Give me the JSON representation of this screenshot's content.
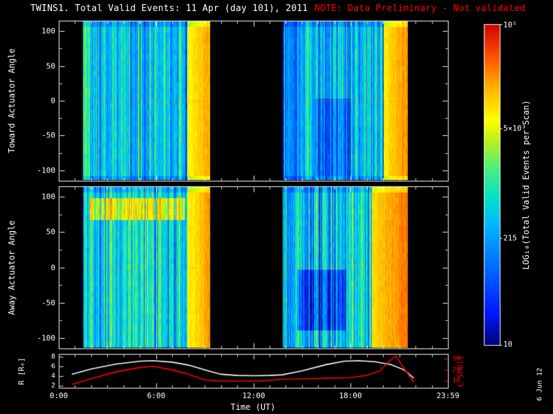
{
  "title": {
    "main": "TWINS1. Total Valid Events: 11 Apr (day 101), 2011",
    "note": "NOTE: Data Preliminary - Not validated"
  },
  "datestamp": "6 Jun 12",
  "colors": {
    "background": "#000000",
    "foreground": "#ffffff",
    "note": "#ff0000",
    "r_curve": "#ffffff",
    "l_shell": "#ff0000"
  },
  "chart_data": [
    {
      "type": "heatmap",
      "title": "TWINS1. Total Valid Events: 11 Apr (day 101), 2011",
      "note": "NOTE: Data Preliminary - Not validated",
      "xlabel": "Time (UT)",
      "xlim_hours": [
        0,
        24
      ],
      "xticks": [
        {
          "hour": 0,
          "label": "0:00"
        },
        {
          "hour": 6,
          "label": "6:00"
        },
        {
          "hour": 12,
          "label": "12:00"
        },
        {
          "hour": 18,
          "label": "18:00"
        },
        {
          "hour": 23.983,
          "label": "23:59"
        }
      ],
      "panels": [
        {
          "ylabel": "Toward Actuator Angle",
          "ylim": [
            -115,
            115
          ],
          "yticks": [
            100,
            50,
            0,
            -50,
            -100
          ]
        },
        {
          "ylabel": "Away Actuator Angle",
          "ylim": [
            -115,
            115
          ],
          "yticks": [
            100,
            50,
            0,
            -50,
            -100
          ]
        }
      ],
      "blocks": [
        {
          "panel": 0,
          "start_hour": 1.5,
          "end_hour": 9.3,
          "base": 0.4,
          "variance": 0.13,
          "bright_edge_hours": 1.4,
          "bright_level": 0.7,
          "features": []
        },
        {
          "panel": 0,
          "start_hour": 13.8,
          "end_hour": 21.5,
          "base": 0.38,
          "variance": 0.14,
          "bright_edge_hours": 1.5,
          "bright_level": 0.72,
          "features": [
            {
              "type": "dark-patch",
              "h0": 15.8,
              "h1": 18.0,
              "r0": 0.5,
              "r1": 0.95,
              "delta": -0.12
            }
          ]
        },
        {
          "panel": 1,
          "start_hour": 1.5,
          "end_hour": 9.3,
          "base": 0.44,
          "variance": 0.13,
          "bright_edge_hours": 1.4,
          "bright_level": 0.7,
          "features": [
            {
              "type": "bright-band",
              "h0": 1.9,
              "h1": 7.8,
              "r0": 0.07,
              "r1": 0.19,
              "delta": 0.24
            }
          ]
        },
        {
          "panel": 1,
          "start_hour": 13.8,
          "end_hour": 21.5,
          "base": 0.42,
          "variance": 0.15,
          "bright_edge_hours": 2.2,
          "bright_level": 0.75,
          "features": [
            {
              "type": "dark-patch",
              "h0": 14.7,
              "h1": 17.7,
              "r0": 0.51,
              "r1": 0.85,
              "delta": -0.2
            }
          ]
        }
      ],
      "colorbar": {
        "label": "LOG₁₀(Total Valid Events per Scan)",
        "scale": "log",
        "range": [
          10,
          100000
        ],
        "ticks": [
          {
            "value": 100000,
            "label": "10⁵"
          },
          {
            "value": 5000,
            "label": "5×10³"
          },
          {
            "value": 215,
            "label": "215"
          },
          {
            "value": 10,
            "label": "10"
          }
        ],
        "stops": [
          [
            0.0,
            "#000078"
          ],
          [
            0.1,
            "#0018ff"
          ],
          [
            0.25,
            "#0070ff"
          ],
          [
            0.37,
            "#00b4ff"
          ],
          [
            0.45,
            "#00e0d0"
          ],
          [
            0.55,
            "#48f080"
          ],
          [
            0.63,
            "#b4f020"
          ],
          [
            0.7,
            "#ffff00"
          ],
          [
            0.8,
            "#ffb400"
          ],
          [
            0.9,
            "#ff5000"
          ],
          [
            1.0,
            "#d00000"
          ]
        ]
      },
      "seed": 20110411
    },
    {
      "type": "line",
      "xlabel": "Time (UT)",
      "left_axis": {
        "label": "R [Rₑ]",
        "ticks": [
          2,
          4,
          6,
          8
        ],
        "range": [
          1.5,
          8.5
        ],
        "color": "#ffffff"
      },
      "right_axis": {
        "label": "L Shell",
        "ticks": [
          10,
          20,
          30
        ],
        "range": [
          4,
          34
        ],
        "color": "#ff0000"
      },
      "series": [
        {
          "name": "R",
          "color": "#ffffff",
          "points": [
            [
              0.8,
              4.3
            ],
            [
              2,
              5.4
            ],
            [
              3.5,
              6.4
            ],
            [
              5,
              7.0
            ],
            [
              5.8,
              7.1
            ],
            [
              7,
              6.8
            ],
            [
              8,
              6.2
            ],
            [
              9,
              5.2
            ],
            [
              10,
              4.3
            ],
            [
              11,
              4.05
            ],
            [
              12,
              4.0
            ],
            [
              13,
              4.05
            ],
            [
              13.8,
              4.2
            ],
            [
              15,
              5.0
            ],
            [
              16.5,
              6.3
            ],
            [
              17.6,
              7.0
            ],
            [
              18.5,
              7.1
            ],
            [
              19.5,
              6.9
            ],
            [
              20.5,
              6.3
            ],
            [
              21.3,
              5.2
            ],
            [
              21.9,
              3.5
            ]
          ]
        },
        {
          "name": "L Shell",
          "color": "#ff0000",
          "points": [
            [
              0.8,
              7
            ],
            [
              2,
              12
            ],
            [
              3.5,
              18
            ],
            [
              5,
              22
            ],
            [
              5.8,
              23
            ],
            [
              7,
              20
            ],
            [
              8,
              16
            ],
            [
              9,
              11
            ],
            [
              10,
              10
            ],
            [
              11,
              10
            ],
            [
              12,
              10
            ],
            [
              13,
              10.5
            ],
            [
              13.6,
              11.5
            ],
            [
              15,
              12
            ],
            [
              16.5,
              12.5
            ],
            [
              18,
              13
            ],
            [
              19,
              15
            ],
            [
              19.8,
              19
            ],
            [
              20.4,
              28
            ],
            [
              20.8,
              32
            ],
            [
              21.3,
              21
            ],
            [
              21.9,
              9
            ]
          ]
        }
      ]
    }
  ]
}
